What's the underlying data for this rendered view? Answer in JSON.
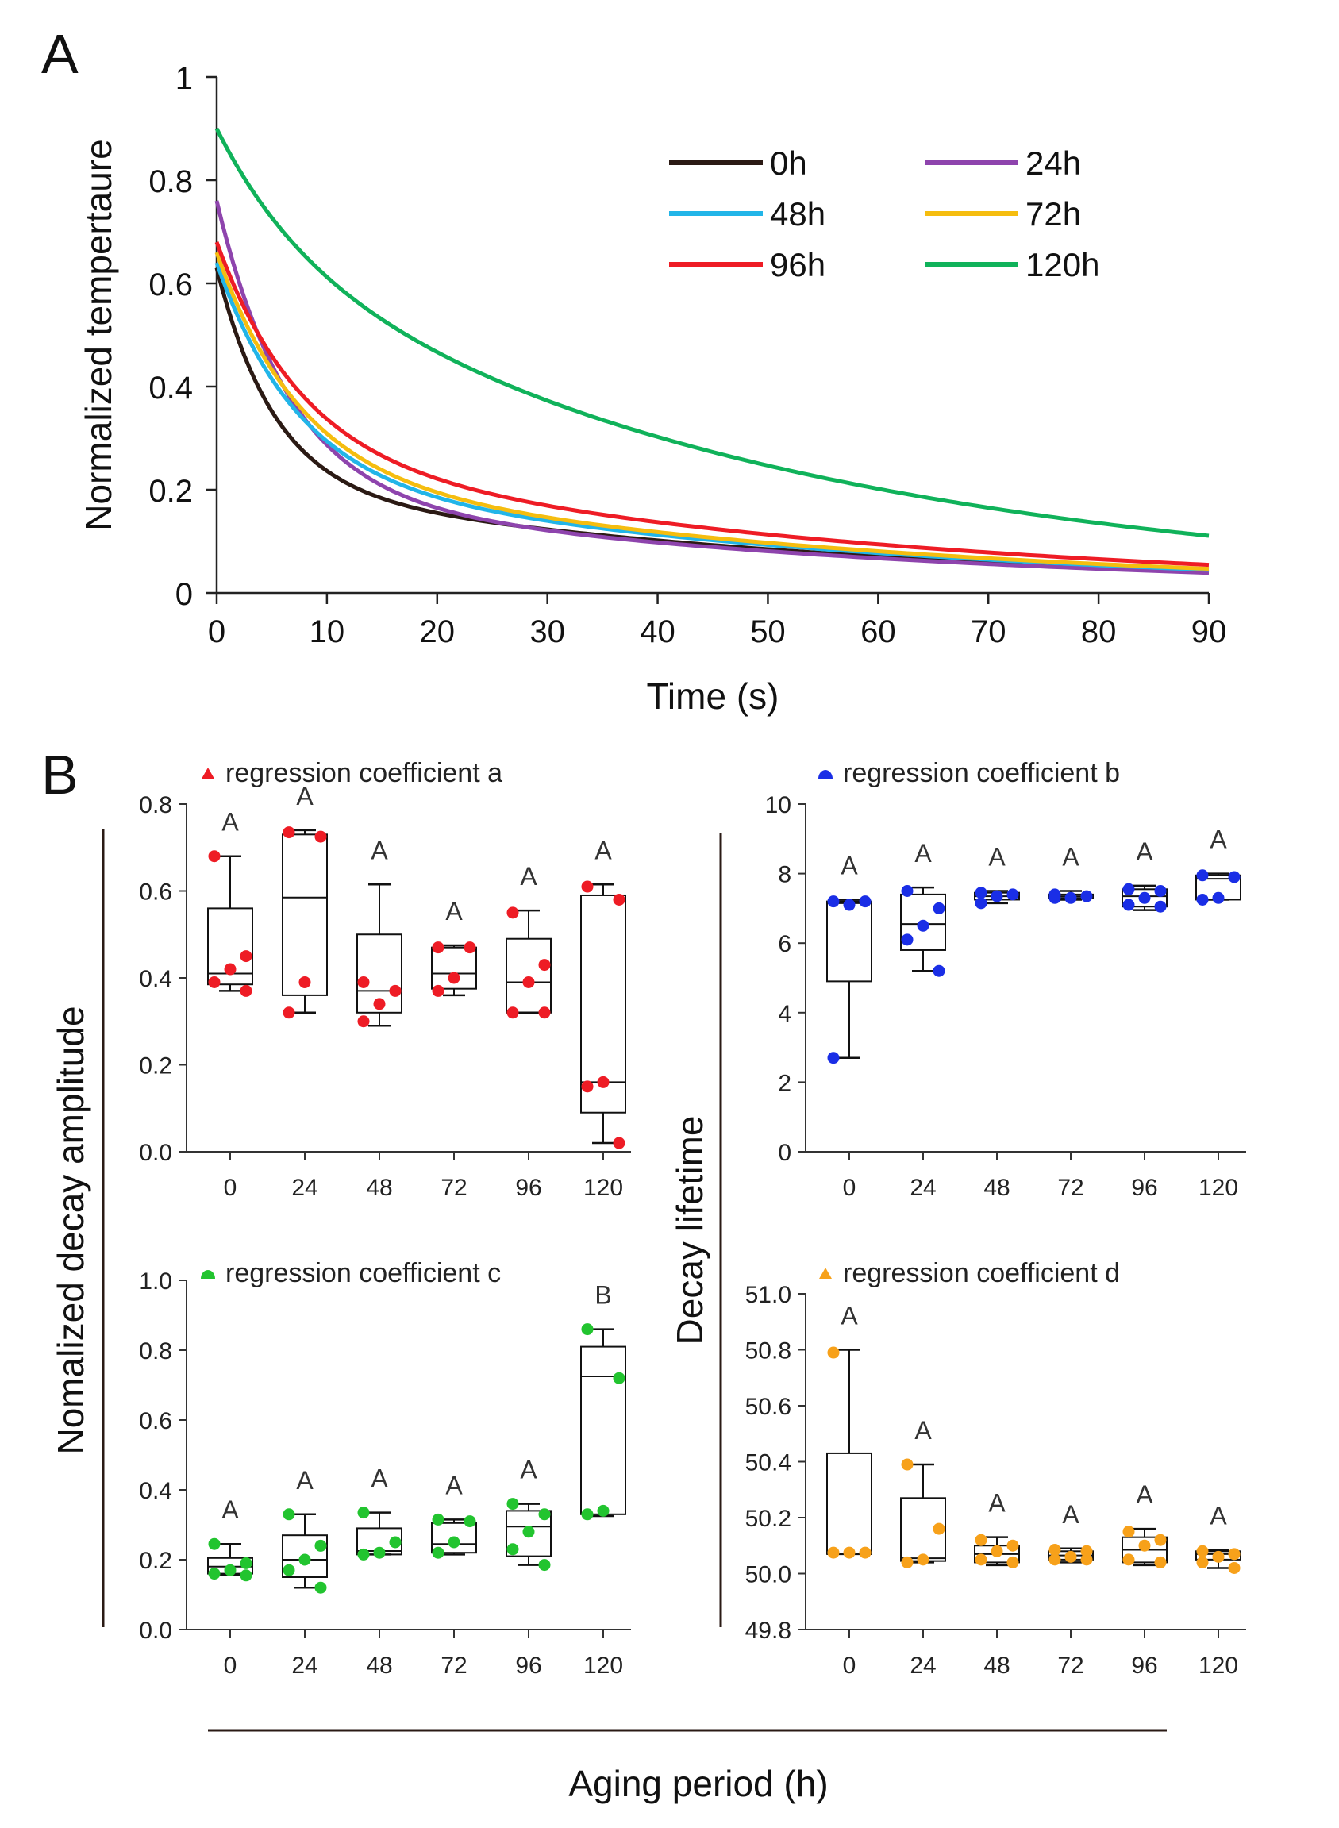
{
  "panel_labels": {
    "a": "A",
    "b": "B"
  },
  "shared_labels": {
    "ylabel_amplitude": "Nomalized decay amplitude",
    "ylabel_lifetime": "Decay lifetime",
    "xlabel_aging": "Aging period (h)"
  },
  "colors": {
    "0h": "#2b1a14",
    "24h": "#8e44ad",
    "48h": "#22b5e8",
    "72h": "#f5bd0f",
    "96h": "#ee1c25",
    "120h": "#10b25a",
    "coef_a": "#ee1c25",
    "coef_b": "#1a2ee6",
    "coef_c": "#22c42f",
    "coef_d": "#f7a11a"
  },
  "chart_data": [
    {
      "id": "A",
      "type": "line",
      "title": "",
      "xlabel": "Time (s)",
      "ylabel": "Normalized tempertaure",
      "xlim": [
        0,
        90
      ],
      "ylim": [
        0,
        1
      ],
      "xticks": [
        "0",
        "10",
        "20",
        "30",
        "40",
        "50",
        "60",
        "70",
        "80",
        "90"
      ],
      "yticks": [
        "0",
        "0.2",
        "0.4",
        "0.6",
        "0.8",
        "1"
      ],
      "legend": "top-right",
      "series": [
        {
          "name": "0h",
          "color": "#2b1a14",
          "a": 0.42,
          "b": 5.2,
          "c": 0.21,
          "d": 55
        },
        {
          "name": "24h",
          "color": "#8e44ad",
          "a": 0.56,
          "b": 6.5,
          "c": 0.2,
          "d": 55
        },
        {
          "name": "48h",
          "color": "#22b5e8",
          "a": 0.41,
          "b": 7.2,
          "c": 0.23,
          "d": 55
        },
        {
          "name": "72h",
          "color": "#f5bd0f",
          "a": 0.42,
          "b": 7.4,
          "c": 0.24,
          "d": 55
        },
        {
          "name": "96h",
          "color": "#ee1c25",
          "a": 0.4,
          "b": 7.4,
          "c": 0.28,
          "d": 55
        },
        {
          "name": "120h",
          "color": "#10b25a",
          "a": 0.23,
          "b": 7.8,
          "c": 0.67,
          "d": 50
        }
      ]
    },
    {
      "id": "B-a",
      "type": "box",
      "legend_label": "regression coefficient a",
      "legend_marker": "triangle",
      "color": "#ee1c25",
      "categories": [
        "0",
        "24",
        "48",
        "72",
        "96",
        "120"
      ],
      "ylim": [
        0,
        0.8
      ],
      "yticks": [
        "0.0",
        "0.2",
        "0.4",
        "0.6",
        "0.8"
      ],
      "letters": [
        "A",
        "A",
        "A",
        "A",
        "A",
        "A"
      ],
      "boxes": [
        {
          "min": 0.37,
          "q1": 0.385,
          "median": 0.41,
          "q3": 0.56,
          "max": 0.68,
          "points": [
            0.68,
            0.45,
            0.42,
            0.39,
            0.37
          ]
        },
        {
          "min": 0.32,
          "q1": 0.36,
          "median": 0.585,
          "q3": 0.73,
          "max": 0.74,
          "points": [
            0.735,
            0.725,
            0.39,
            0.32
          ]
        },
        {
          "min": 0.29,
          "q1": 0.32,
          "median": 0.37,
          "q3": 0.5,
          "max": 0.615,
          "points": [
            0.39,
            0.37,
            0.34,
            0.3
          ]
        },
        {
          "min": 0.36,
          "q1": 0.375,
          "median": 0.41,
          "q3": 0.47,
          "max": 0.475,
          "points": [
            0.47,
            0.47,
            0.4,
            0.37
          ]
        },
        {
          "min": 0.32,
          "q1": 0.32,
          "median": 0.39,
          "q3": 0.49,
          "max": 0.555,
          "points": [
            0.55,
            0.43,
            0.39,
            0.32,
            0.32
          ]
        },
        {
          "min": 0.02,
          "q1": 0.09,
          "median": 0.16,
          "q3": 0.59,
          "max": 0.615,
          "points": [
            0.61,
            0.58,
            0.16,
            0.15,
            0.02
          ]
        }
      ]
    },
    {
      "id": "B-b",
      "type": "box",
      "legend_label": "regression coefficient b",
      "legend_marker": "dome",
      "color": "#1a2ee6",
      "categories": [
        "0",
        "24",
        "48",
        "72",
        "96",
        "120"
      ],
      "ylim": [
        0,
        10
      ],
      "yticks": [
        "0",
        "2",
        "4",
        "6",
        "8",
        "10"
      ],
      "letters": [
        "A",
        "A",
        "A",
        "A",
        "A",
        "A"
      ],
      "boxes": [
        {
          "min": 2.7,
          "q1": 4.9,
          "median": 7.15,
          "q3": 7.2,
          "max": 7.25,
          "points": [
            7.2,
            7.2,
            7.1,
            2.7
          ]
        },
        {
          "min": 5.2,
          "q1": 5.8,
          "median": 6.55,
          "q3": 7.4,
          "max": 7.6,
          "points": [
            7.5,
            7.0,
            6.5,
            6.1,
            5.2
          ]
        },
        {
          "min": 7.15,
          "q1": 7.25,
          "median": 7.35,
          "q3": 7.45,
          "max": 7.5,
          "points": [
            7.45,
            7.4,
            7.35,
            7.15
          ]
        },
        {
          "min": 7.25,
          "q1": 7.3,
          "median": 7.35,
          "q3": 7.4,
          "max": 7.5,
          "points": [
            7.4,
            7.35,
            7.3,
            7.3
          ]
        },
        {
          "min": 6.95,
          "q1": 7.05,
          "median": 7.35,
          "q3": 7.55,
          "max": 7.65,
          "points": [
            7.55,
            7.5,
            7.3,
            7.1,
            7.05
          ]
        },
        {
          "min": 7.25,
          "q1": 7.25,
          "median": 7.85,
          "q3": 7.95,
          "max": 8.0,
          "points": [
            7.95,
            7.9,
            7.3,
            7.25
          ]
        }
      ]
    },
    {
      "id": "B-c",
      "type": "box",
      "legend_label": "regression coefficient c",
      "legend_marker": "dome",
      "color": "#22c42f",
      "categories": [
        "0",
        "24",
        "48",
        "72",
        "96",
        "120"
      ],
      "ylim": [
        0,
        1.0
      ],
      "yticks": [
        "0.0",
        "0.2",
        "0.4",
        "0.6",
        "0.8",
        "1.0"
      ],
      "letters": [
        "A",
        "A",
        "A",
        "A",
        "A",
        "B"
      ],
      "boxes": [
        {
          "min": 0.155,
          "q1": 0.16,
          "median": 0.18,
          "q3": 0.205,
          "max": 0.245,
          "points": [
            0.245,
            0.19,
            0.17,
            0.16,
            0.155
          ]
        },
        {
          "min": 0.12,
          "q1": 0.15,
          "median": 0.2,
          "q3": 0.27,
          "max": 0.33,
          "points": [
            0.33,
            0.24,
            0.2,
            0.17,
            0.12
          ]
        },
        {
          "min": 0.215,
          "q1": 0.215,
          "median": 0.225,
          "q3": 0.29,
          "max": 0.335,
          "points": [
            0.335,
            0.25,
            0.22,
            0.215
          ]
        },
        {
          "min": 0.215,
          "q1": 0.22,
          "median": 0.245,
          "q3": 0.305,
          "max": 0.315,
          "points": [
            0.315,
            0.31,
            0.25,
            0.22
          ]
        },
        {
          "min": 0.185,
          "q1": 0.21,
          "median": 0.295,
          "q3": 0.34,
          "max": 0.36,
          "points": [
            0.36,
            0.33,
            0.28,
            0.23,
            0.185
          ]
        },
        {
          "min": 0.325,
          "q1": 0.33,
          "median": 0.725,
          "q3": 0.81,
          "max": 0.86,
          "points": [
            0.86,
            0.72,
            0.34,
            0.33
          ]
        }
      ]
    },
    {
      "id": "B-d",
      "type": "box",
      "legend_label": "regression coefficient d",
      "legend_marker": "triangle",
      "color": "#f7a11a",
      "categories": [
        "0",
        "24",
        "48",
        "72",
        "96",
        "120"
      ],
      "ylim": [
        49.8,
        51.0
      ],
      "yticks": [
        "49.8",
        "50.0",
        "50.2",
        "50.4",
        "50.6",
        "50.8",
        "51.0"
      ],
      "letters": [
        "A",
        "A",
        "A",
        "A",
        "A",
        "A"
      ],
      "boxes": [
        {
          "min": 50.07,
          "q1": 50.07,
          "median": 50.07,
          "q3": 50.43,
          "max": 50.8,
          "points": [
            50.79,
            50.075,
            50.075,
            50.075
          ]
        },
        {
          "min": 50.04,
          "q1": 50.045,
          "median": 50.055,
          "q3": 50.27,
          "max": 50.39,
          "points": [
            50.39,
            50.16,
            50.05,
            50.04
          ]
        },
        {
          "min": 50.03,
          "q1": 50.04,
          "median": 50.07,
          "q3": 50.1,
          "max": 50.13,
          "points": [
            50.12,
            50.1,
            50.08,
            50.05,
            50.04
          ]
        },
        {
          "min": 50.04,
          "q1": 50.05,
          "median": 50.065,
          "q3": 50.08,
          "max": 50.09,
          "points": [
            50.085,
            50.08,
            50.06,
            50.05,
            50.05
          ]
        },
        {
          "min": 50.03,
          "q1": 50.04,
          "median": 50.085,
          "q3": 50.13,
          "max": 50.16,
          "points": [
            50.15,
            50.12,
            50.1,
            50.05,
            50.04
          ]
        },
        {
          "min": 50.02,
          "q1": 50.05,
          "median": 50.07,
          "q3": 50.08,
          "max": 50.085,
          "points": [
            50.08,
            50.07,
            50.06,
            50.04,
            50.02
          ]
        }
      ]
    }
  ]
}
